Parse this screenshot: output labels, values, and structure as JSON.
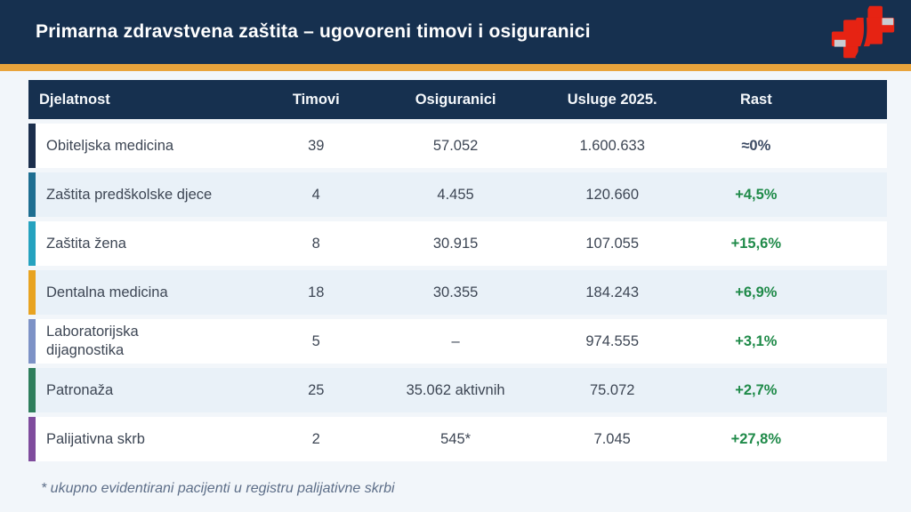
{
  "slide": {
    "title": "Primarna zdravstvena zaštita – ugovoreni timovi i osiguranici",
    "footnote": "* ukupno evidentirani pacijenti u registru palijativne skrbi"
  },
  "logo": {
    "name": "red-medical-cross-logo",
    "cross_color": "#e62313",
    "tab_color": "#c9cdd2"
  },
  "colors": {
    "navy": "#16304f",
    "gold": "#e9a43c",
    "green": "#1f8a49",
    "page_bg": "#f2f6fa",
    "alt_row_bg": "#e9f1f8",
    "body_text": "#3d4654",
    "footnote_text": "#5d6e88"
  },
  "table": {
    "columns": [
      {
        "key": "djelatnost",
        "label": "Djelatnost"
      },
      {
        "key": "timovi",
        "label": "Timovi"
      },
      {
        "key": "osiguranici",
        "label": "Osiguranici"
      },
      {
        "key": "usluge",
        "label": "Usluge 2025."
      },
      {
        "key": "rast",
        "label": "Rast"
      }
    ],
    "rows": [
      {
        "djelatnost": "Obiteljska medicina",
        "timovi": "39",
        "osiguranici": "57.052",
        "usluge": "1.600.633",
        "rast": "≈0%",
        "accent": "#1b2e4c",
        "rast_color": "#3b4a63"
      },
      {
        "djelatnost": "Zaštita predškolske djece",
        "timovi": "4",
        "osiguranici": "4.455",
        "usluge": "120.660",
        "rast": "+4,5%",
        "accent": "#1e6e91",
        "rast_color": "#1f8a49"
      },
      {
        "djelatnost": "Zaštita žena",
        "timovi": "8",
        "osiguranici": "30.915",
        "usluge": "107.055",
        "rast": "+15,6%",
        "accent": "#25a2bf",
        "rast_color": "#1f8a49"
      },
      {
        "djelatnost": "Dentalna medicina",
        "timovi": "18",
        "osiguranici": "30.355",
        "usluge": "184.243",
        "rast": "+6,9%",
        "accent": "#e8a321",
        "rast_color": "#1f8a49"
      },
      {
        "djelatnost": "Laboratorijska\ndijagnostika",
        "timovi": "5",
        "osiguranici": "–",
        "usluge": "974.555",
        "rast": "+3,1%",
        "accent": "#7d92c6",
        "rast_color": "#1f8a49"
      },
      {
        "djelatnost": "Patronaža",
        "timovi": "25",
        "osiguranici": "35.062 aktivnih",
        "usluge": "75.072",
        "rast": "+2,7%",
        "accent": "#2f7e5c",
        "rast_color": "#1f8a49"
      },
      {
        "djelatnost": "Palijativna skrb",
        "timovi": "2",
        "osiguranici": "545*",
        "usluge": "7.045",
        "rast": "+27,8%",
        "accent": "#7f4c9d",
        "rast_color": "#1f8a49"
      }
    ]
  }
}
